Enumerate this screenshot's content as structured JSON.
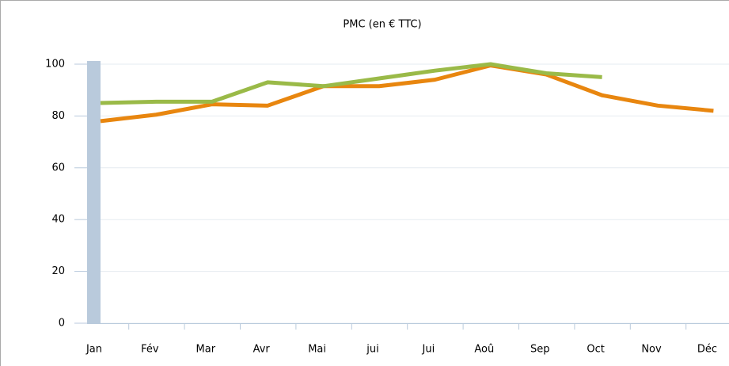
{
  "chart_data": {
    "type": "line",
    "title": "PMC (en € TTC)",
    "categories": [
      "Jan",
      "Fév",
      "Mar",
      "Avr",
      "Mai",
      "jui",
      "Jui",
      "Aoû",
      "Sep",
      "Oct",
      "Nov",
      "Déc"
    ],
    "series": [
      {
        "color": "#e8860f",
        "values": [
          78,
          80.5,
          84.5,
          84,
          91.5,
          91.5,
          94,
          99.5,
          96,
          88,
          84,
          82
        ]
      },
      {
        "color": "#9aba48",
        "values": [
          85,
          85.5,
          85.5,
          93,
          91.5,
          94.5,
          97.5,
          100,
          96.5,
          95,
          null,
          null
        ]
      }
    ],
    "ylim": [
      0,
      100
    ],
    "yticks": [
      0,
      20,
      40,
      60,
      80,
      100
    ],
    "grid": true
  }
}
